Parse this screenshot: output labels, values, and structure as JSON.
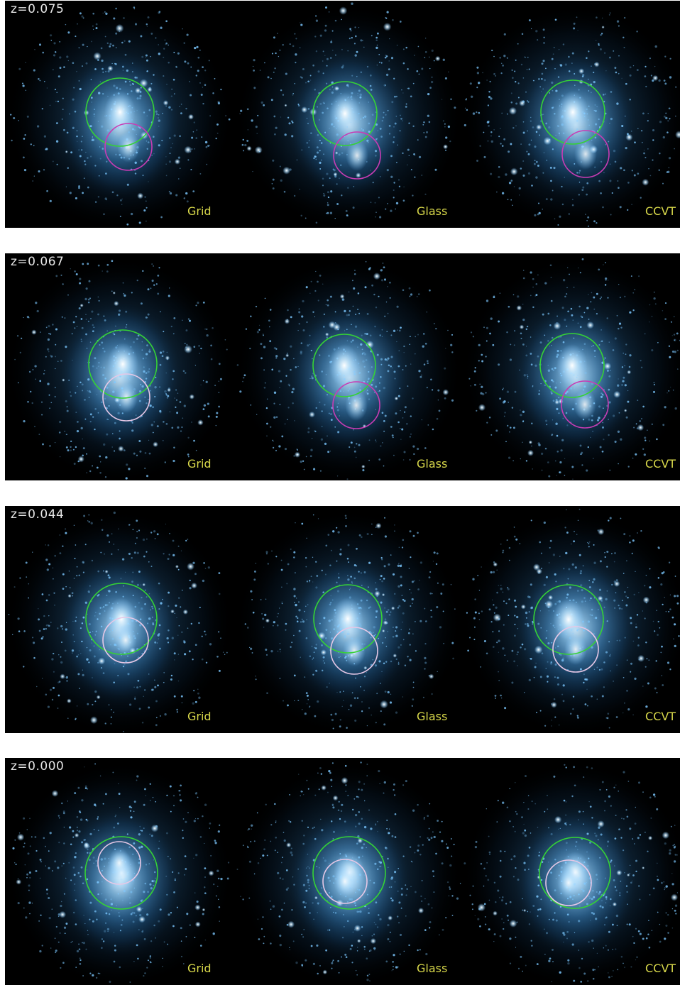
{
  "rows": [
    {
      "redshift": "z=0.075",
      "panels": [
        {
          "label": "Grid",
          "circles": [
            {
              "color": "#35d235"
            },
            {
              "color": "#c83cb4"
            }
          ]
        },
        {
          "label": "Glass",
          "circles": [
            {
              "color": "#35d235"
            },
            {
              "color": "#c83cb4"
            }
          ]
        },
        {
          "label": "CCVT",
          "circles": [
            {
              "color": "#35d235"
            },
            {
              "color": "#c83cb4"
            }
          ]
        }
      ]
    },
    {
      "redshift": "z=0.067",
      "panels": [
        {
          "label": "Grid",
          "circles": [
            {
              "color": "#35d235"
            },
            {
              "color": "#e6c8e6"
            }
          ]
        },
        {
          "label": "Glass",
          "circles": [
            {
              "color": "#35d235"
            },
            {
              "color": "#c83cb4"
            }
          ]
        },
        {
          "label": "CCVT",
          "circles": [
            {
              "color": "#35d235"
            },
            {
              "color": "#c83cb4"
            }
          ]
        }
      ]
    },
    {
      "redshift": "z=0.044",
      "panels": [
        {
          "label": "Grid",
          "circles": [
            {
              "color": "#35d235"
            },
            {
              "color": "#e6c8e6"
            }
          ]
        },
        {
          "label": "Glass",
          "circles": [
            {
              "color": "#35d235"
            },
            {
              "color": "#e6c8e6"
            }
          ]
        },
        {
          "label": "CCVT",
          "circles": [
            {
              "color": "#35d235"
            },
            {
              "color": "#e6c8e6"
            }
          ]
        }
      ]
    },
    {
      "redshift": "z=0.000",
      "panels": [
        {
          "label": "Grid",
          "circles": [
            {
              "color": "#35d235"
            },
            {
              "color": "#e6c8e6"
            }
          ]
        },
        {
          "label": "Glass",
          "circles": [
            {
              "color": "#35d235"
            },
            {
              "color": "#e6c8e6"
            }
          ]
        },
        {
          "label": "CCVT",
          "circles": [
            {
              "color": "#35d235"
            },
            {
              "color": "#e6c8e6"
            }
          ]
        }
      ]
    }
  ]
}
